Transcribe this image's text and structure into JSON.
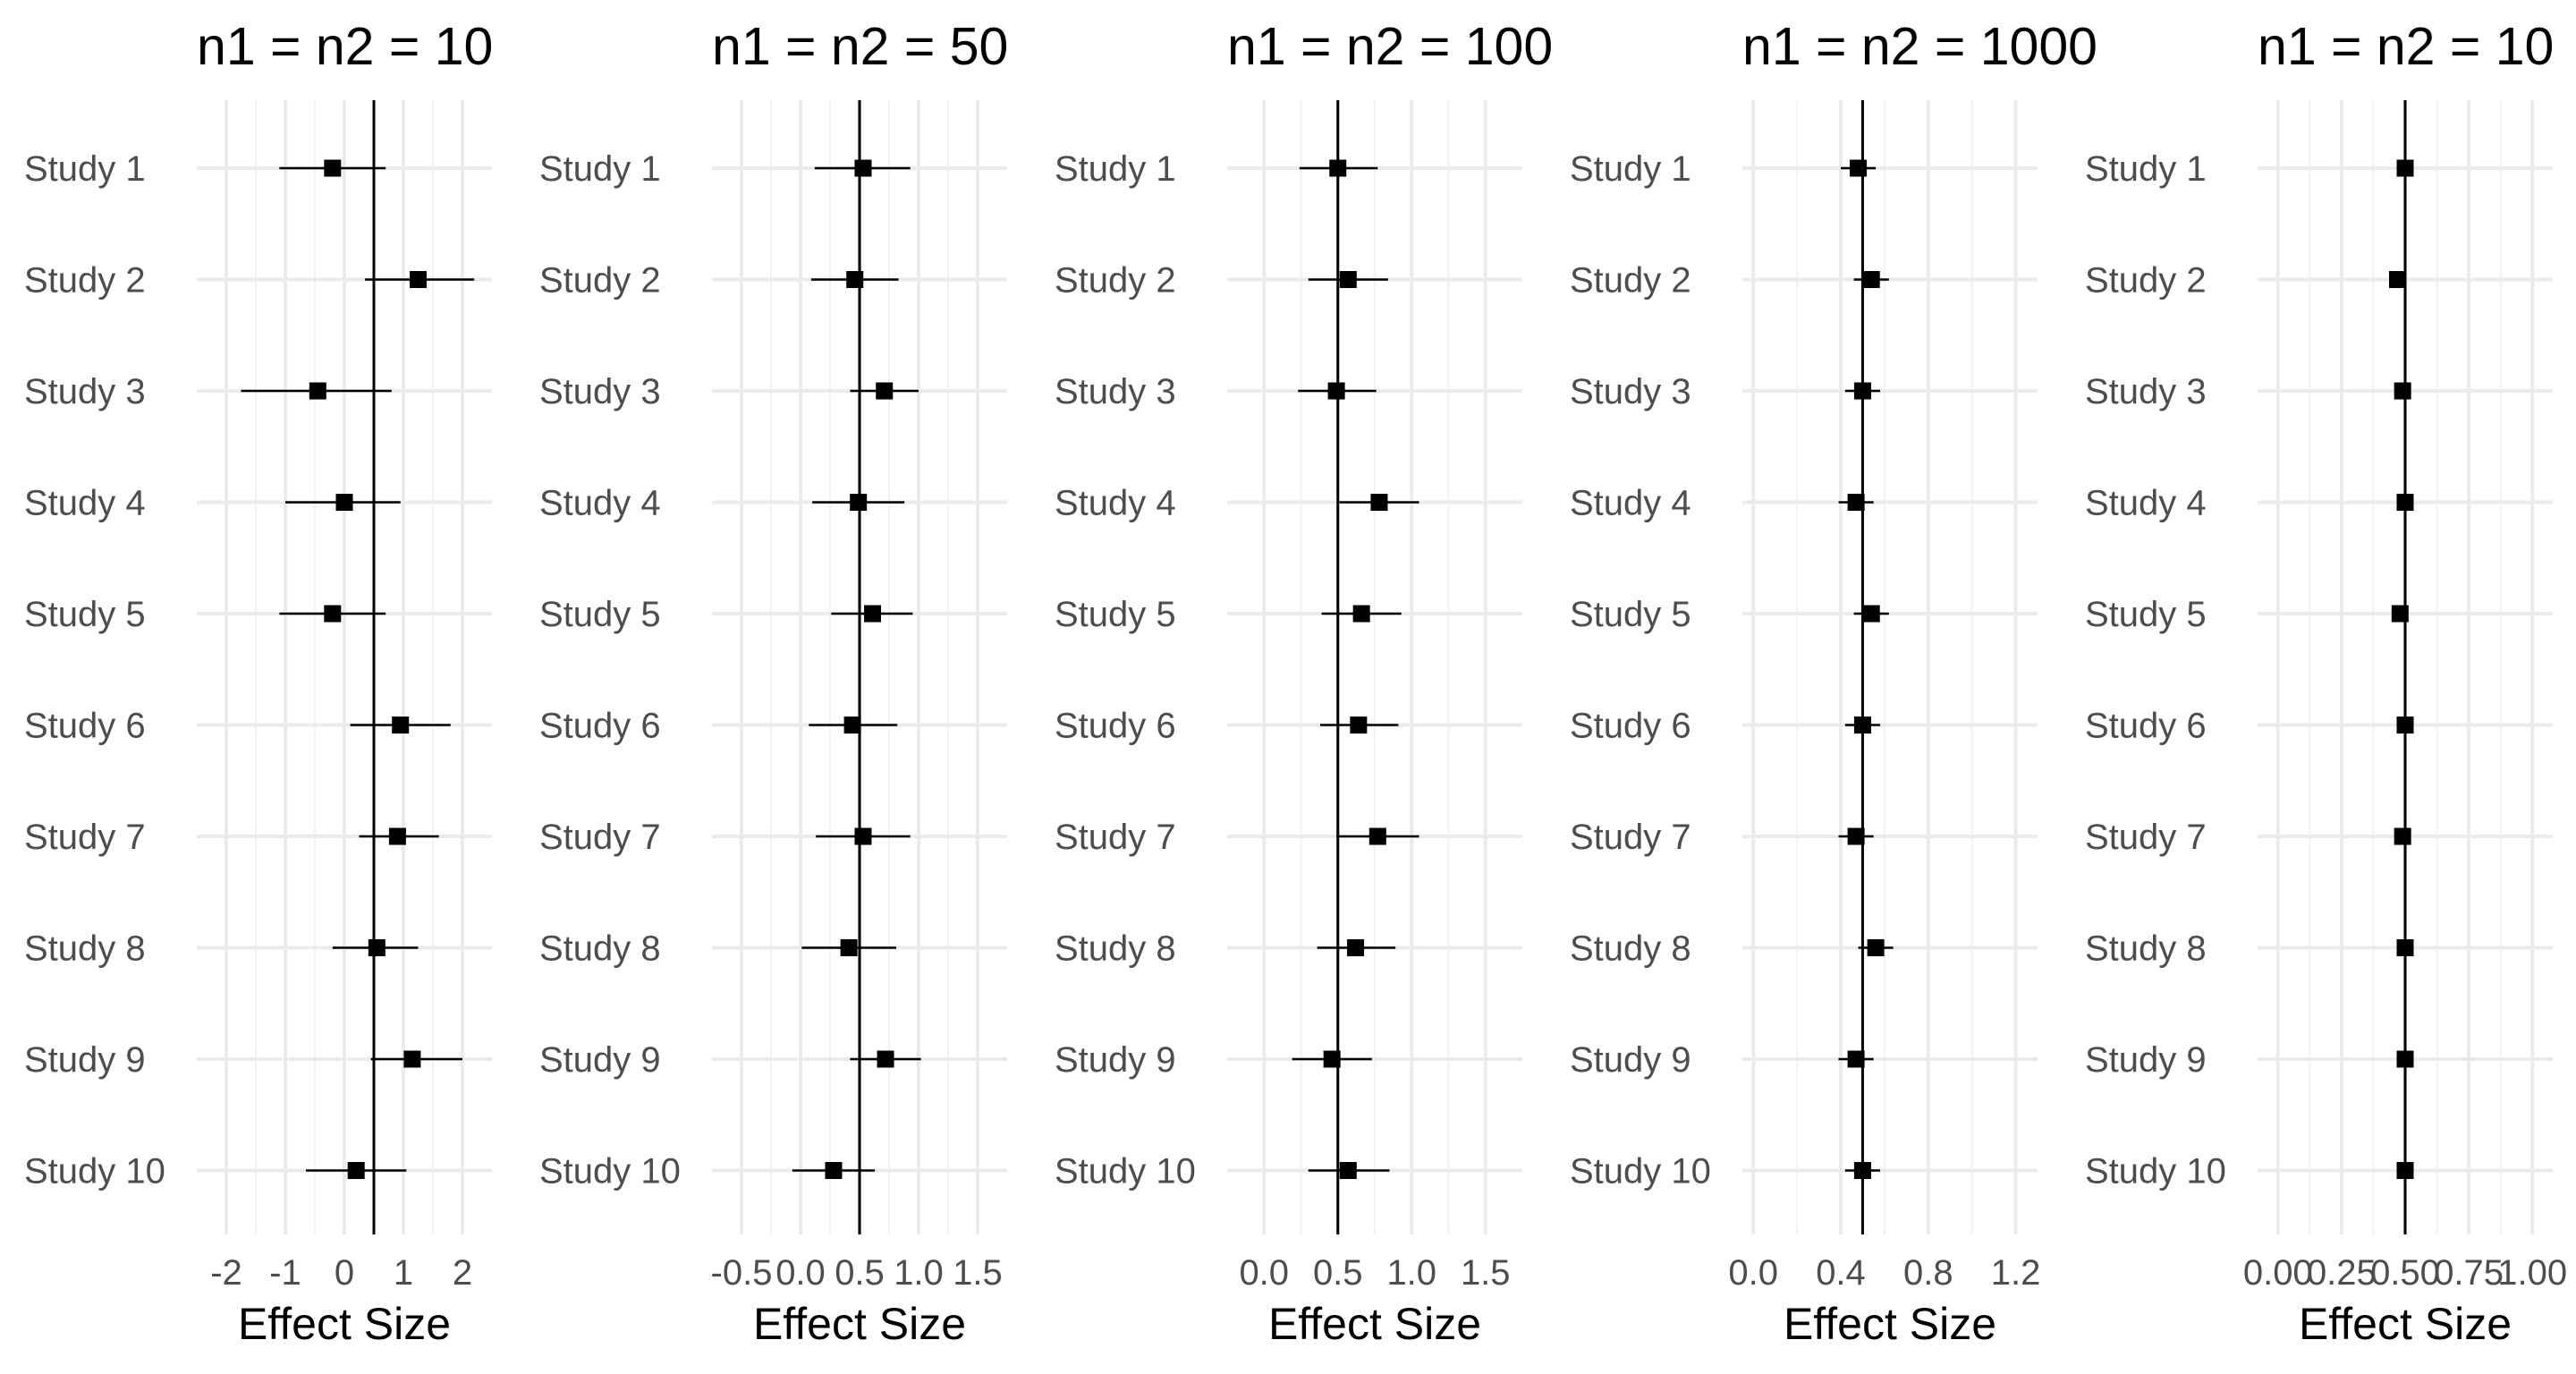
{
  "chart_data": [
    {
      "type": "forest",
      "title": "n1 = n2 = 10",
      "xlabel": "Effect Size",
      "xlim": [
        -2.5,
        2.5
      ],
      "xticks": [
        -2,
        -1,
        0,
        1,
        2
      ],
      "xtick_labels": [
        "-2",
        "-1",
        "0",
        "1",
        "2"
      ],
      "reference_line": 0.5,
      "grid": true,
      "studies": [
        "Study 1",
        "Study 2",
        "Study 3",
        "Study 4",
        "Study 5",
        "Study 6",
        "Study 7",
        "Study 8",
        "Study 9",
        "Study 10"
      ],
      "estimates": [
        -0.2,
        1.25,
        -0.45,
        0.0,
        -0.2,
        0.95,
        0.9,
        0.55,
        1.15,
        0.2
      ],
      "lower": [
        -1.1,
        0.35,
        -1.75,
        -1.0,
        -1.1,
        0.1,
        0.25,
        -0.2,
        0.45,
        -0.65
      ],
      "upper": [
        0.7,
        2.2,
        0.8,
        0.95,
        0.7,
        1.8,
        1.6,
        1.25,
        2.0,
        1.05
      ]
    },
    {
      "type": "forest",
      "title": "n1 = n2 = 50",
      "xlabel": "Effect Size",
      "xlim": [
        -0.75,
        1.75
      ],
      "xticks": [
        -0.5,
        0.0,
        0.5,
        1.0,
        1.5
      ],
      "xtick_labels": [
        "-0.5",
        "0.0",
        "0.5",
        "1.0",
        "1.5"
      ],
      "reference_line": 0.5,
      "grid": true,
      "studies": [
        "Study 1",
        "Study 2",
        "Study 3",
        "Study 4",
        "Study 5",
        "Study 6",
        "Study 7",
        "Study 8",
        "Study 9",
        "Study 10"
      ],
      "estimates": [
        0.53,
        0.46,
        0.71,
        0.49,
        0.61,
        0.44,
        0.53,
        0.41,
        0.72,
        0.28
      ],
      "lower": [
        0.12,
        0.09,
        0.42,
        0.1,
        0.26,
        0.07,
        0.13,
        0.01,
        0.42,
        -0.07
      ],
      "upper": [
        0.93,
        0.83,
        1.0,
        0.88,
        0.95,
        0.82,
        0.93,
        0.81,
        1.02,
        0.63
      ]
    },
    {
      "type": "forest",
      "title": "n1 = n2 = 100",
      "xlabel": "Effect Size",
      "xlim": [
        -0.25,
        1.75
      ],
      "xticks": [
        0.0,
        0.5,
        1.0,
        1.5
      ],
      "xtick_labels": [
        "0.0",
        "0.5",
        "1.0",
        "1.5"
      ],
      "reference_line": 0.5,
      "grid": true,
      "studies": [
        "Study 1",
        "Study 2",
        "Study 3",
        "Study 4",
        "Study 5",
        "Study 6",
        "Study 7",
        "Study 8",
        "Study 9",
        "Study 10"
      ],
      "estimates": [
        0.5,
        0.57,
        0.49,
        0.78,
        0.66,
        0.64,
        0.77,
        0.62,
        0.46,
        0.57
      ],
      "lower": [
        0.24,
        0.3,
        0.23,
        0.51,
        0.39,
        0.38,
        0.49,
        0.36,
        0.19,
        0.3
      ],
      "upper": [
        0.77,
        0.84,
        0.76,
        1.05,
        0.93,
        0.91,
        1.05,
        0.89,
        0.73,
        0.85
      ]
    },
    {
      "type": "forest",
      "title": "n1 = n2 = 1000",
      "xlabel": "Effect Size",
      "xlim": [
        -0.05,
        1.3
      ],
      "xticks": [
        0.0,
        0.4,
        0.8,
        1.2
      ],
      "xtick_labels": [
        "0.0",
        "0.4",
        "0.8",
        "1.2"
      ],
      "reference_line": 0.5,
      "grid": true,
      "studies": [
        "Study 1",
        "Study 2",
        "Study 3",
        "Study 4",
        "Study 5",
        "Study 6",
        "Study 7",
        "Study 8",
        "Study 9",
        "Study 10"
      ],
      "estimates": [
        0.48,
        0.54,
        0.5,
        0.47,
        0.54,
        0.5,
        0.47,
        0.56,
        0.47,
        0.5
      ],
      "lower": [
        0.4,
        0.46,
        0.42,
        0.39,
        0.46,
        0.42,
        0.39,
        0.48,
        0.39,
        0.42
      ],
      "upper": [
        0.56,
        0.62,
        0.58,
        0.55,
        0.62,
        0.58,
        0.55,
        0.64,
        0.55,
        0.58
      ]
    },
    {
      "type": "forest",
      "title": "n1 = n2 = 10",
      "xlabel": "Effect Size",
      "xlim": [
        -0.08,
        1.08
      ],
      "xticks": [
        0.0,
        0.25,
        0.5,
        0.75,
        1.0
      ],
      "xtick_labels": [
        "0.00",
        "0.25",
        "0.50",
        "0.75",
        "1.00"
      ],
      "reference_line": 0.5,
      "grid": true,
      "studies": [
        "Study 1",
        "Study 2",
        "Study 3",
        "Study 4",
        "Study 5",
        "Study 6",
        "Study 7",
        "Study 8",
        "Study 9",
        "Study 10"
      ],
      "estimates": [
        0.5,
        0.47,
        0.49,
        0.5,
        0.48,
        0.5,
        0.49,
        0.5,
        0.5,
        0.5
      ],
      "lower": [
        0.49,
        0.46,
        0.48,
        0.49,
        0.47,
        0.49,
        0.48,
        0.49,
        0.49,
        0.49
      ],
      "upper": [
        0.51,
        0.48,
        0.5,
        0.51,
        0.49,
        0.51,
        0.5,
        0.51,
        0.51,
        0.51
      ]
    }
  ]
}
